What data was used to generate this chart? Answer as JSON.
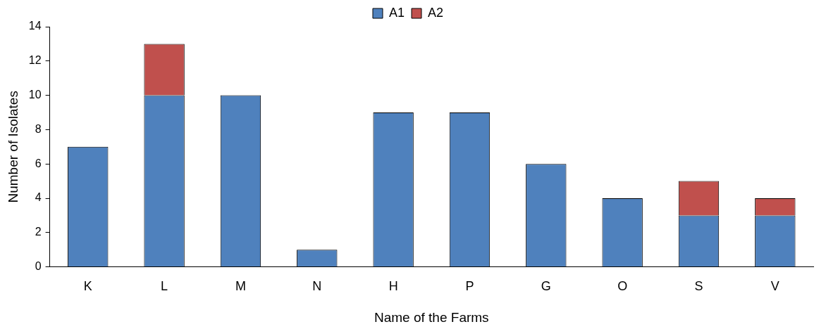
{
  "chart_data": {
    "type": "bar",
    "stacked": true,
    "xlabel": "Name of the Farms",
    "ylabel": "Number of Isolates",
    "categories": [
      "K",
      "L",
      "M",
      "N",
      "H",
      "P",
      "G",
      "O",
      "S",
      "V"
    ],
    "series": [
      {
        "name": "A1",
        "color": "#4f81bd",
        "values": [
          7,
          10,
          10,
          1,
          9,
          9,
          6,
          4,
          3,
          3
        ]
      },
      {
        "name": "A2",
        "color": "#c0504d",
        "values": [
          null,
          3,
          null,
          null,
          null,
          null,
          null,
          null,
          2,
          1
        ]
      }
    ],
    "ylim": [
      0,
      14
    ],
    "yticks": [
      0,
      2,
      4,
      6,
      8,
      10,
      12,
      14
    ],
    "grid": false,
    "legend": "top"
  }
}
